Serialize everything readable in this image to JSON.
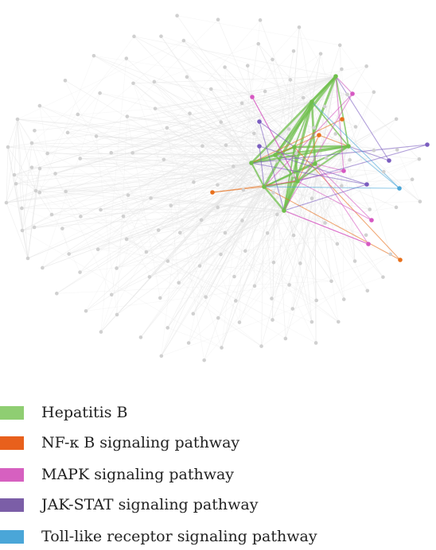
{
  "legend": {
    "items": [
      {
        "label": "Hepatitis B",
        "color": "#8fce72"
      },
      {
        "label": "NF-κ B signaling pathway",
        "color": "#e8601c"
      },
      {
        "label": "MAPK signaling pathway",
        "color": "#d660c0"
      },
      {
        "label": "JAK-STAT signaling pathway",
        "color": "#7b5ea7"
      },
      {
        "label": "Toll-like receptor signaling pathway",
        "color": "#4aa6d8"
      }
    ]
  },
  "network": {
    "colors": {
      "node_default": "#d0d0d0",
      "edge_default": "#e6e6e6",
      "hepatitis_b": "#6fbf4c",
      "nfkb": "#e8701c",
      "mapk": "#d658c2",
      "jak_stat": "#7b5ec0",
      "toll_like": "#4aa6d8"
    }
  }
}
